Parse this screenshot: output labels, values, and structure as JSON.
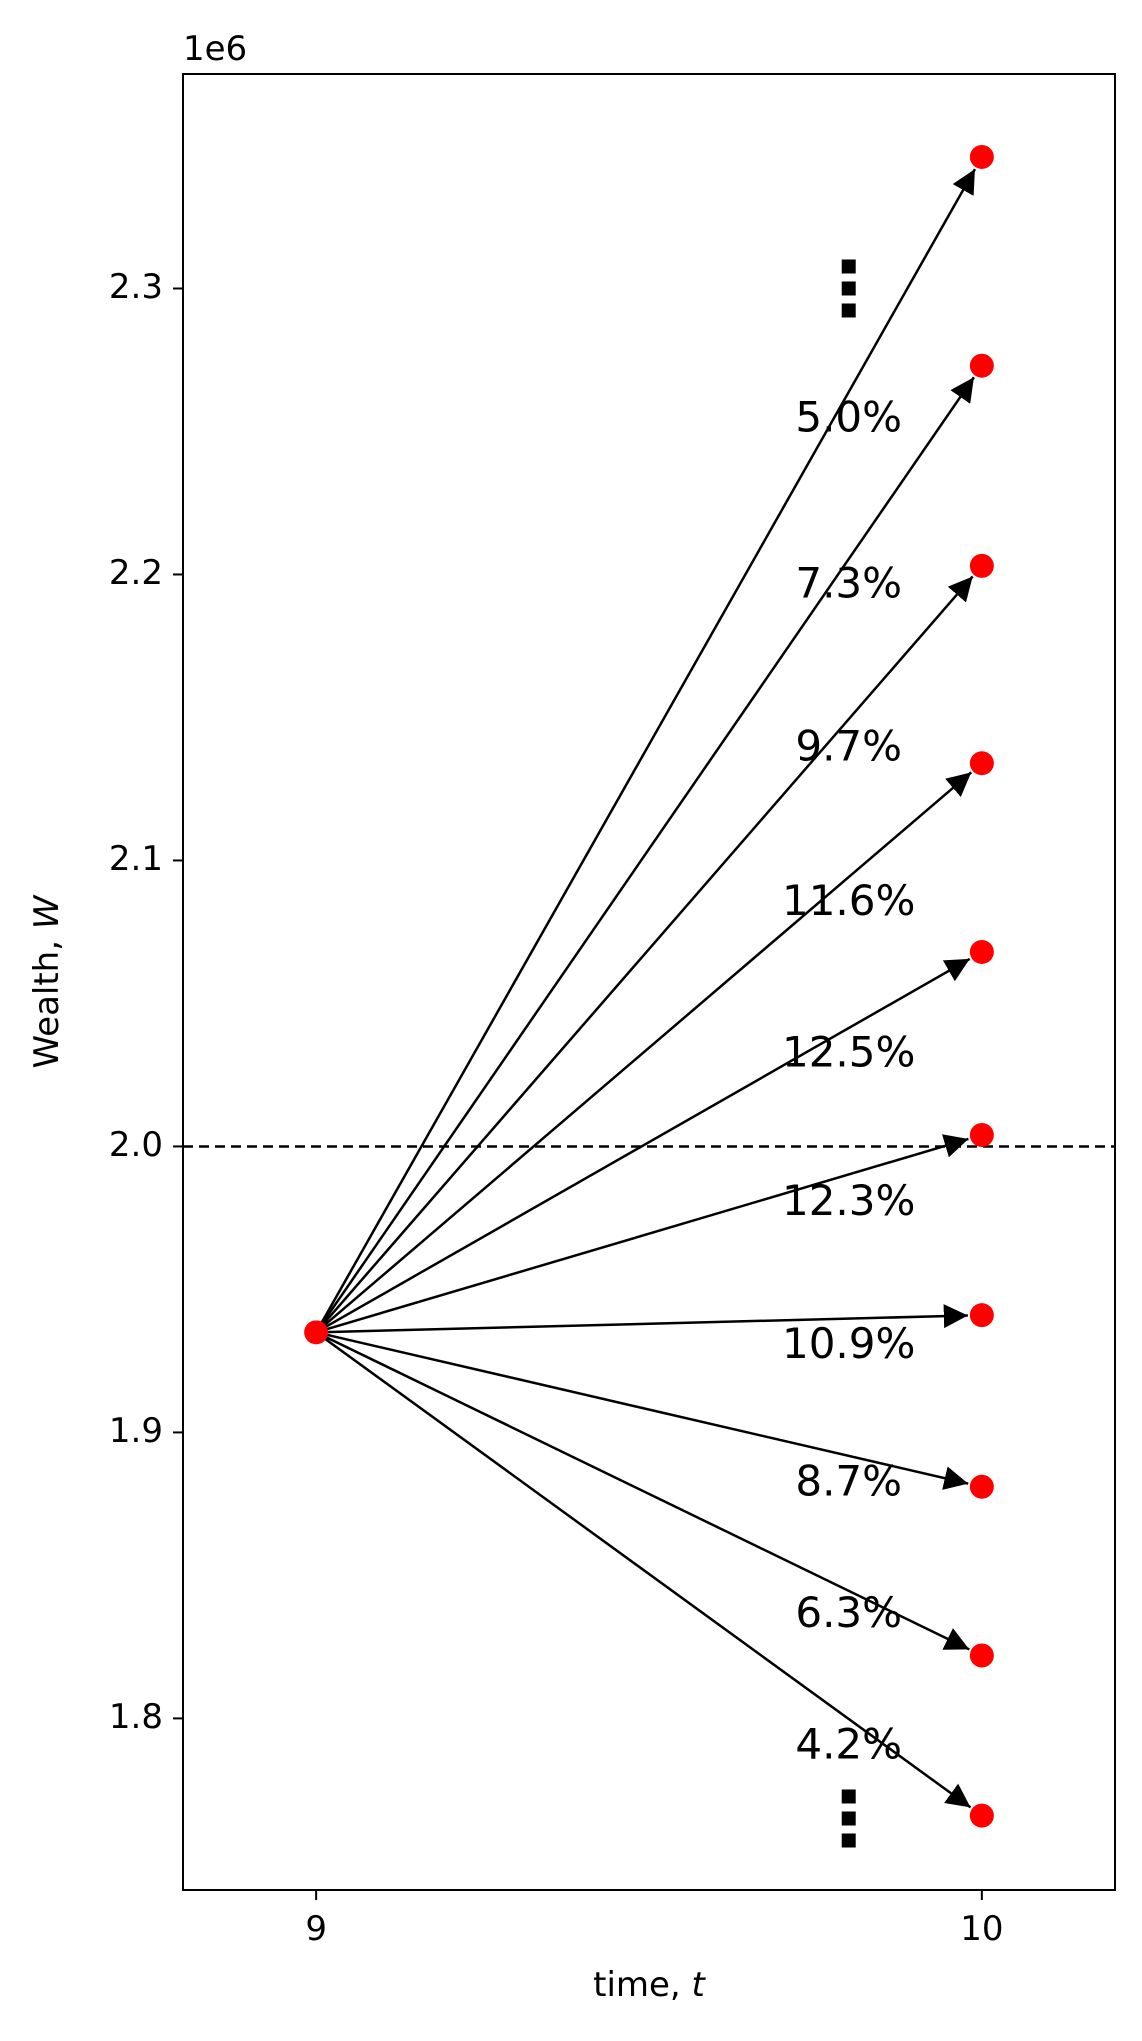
{
  "chart_data": {
    "type": "line",
    "xlabel_prefix": "time, ",
    "xlabel_var": "t",
    "ylabel_prefix": "Wealth, ",
    "ylabel_var": "W",
    "y_offset_text": "1e6",
    "xlim": [
      8.8,
      10.2
    ],
    "ylim": [
      1.74,
      2.375
    ],
    "xticks": [
      9,
      10
    ],
    "xtick_labels": [
      "9",
      "10"
    ],
    "yticks": [
      1.8,
      1.9,
      2.0,
      2.1,
      2.2,
      2.3
    ],
    "ytick_labels": [
      "1.8",
      "1.9",
      "2.0",
      "2.1",
      "2.2",
      "2.3"
    ],
    "reference_line": {
      "y": 2.0,
      "style": "dashed"
    },
    "start_point": {
      "x": 9,
      "y": 1.935
    },
    "end_points": [
      {
        "x": 10,
        "y": 2.346
      },
      {
        "x": 10,
        "y": 2.273
      },
      {
        "x": 10,
        "y": 2.203
      },
      {
        "x": 10,
        "y": 2.134
      },
      {
        "x": 10,
        "y": 2.068
      },
      {
        "x": 10,
        "y": 2.004
      },
      {
        "x": 10,
        "y": 1.941
      },
      {
        "x": 10,
        "y": 1.881
      },
      {
        "x": 10,
        "y": 1.822
      },
      {
        "x": 10,
        "y": 1.766
      }
    ],
    "annotations": [
      {
        "text": "5.0%",
        "x": 9.8,
        "y": 2.254
      },
      {
        "text": "7.3%",
        "x": 9.8,
        "y": 2.196
      },
      {
        "text": "9.7%",
        "x": 9.8,
        "y": 2.139
      },
      {
        "text": "11.6%",
        "x": 9.8,
        "y": 2.085
      },
      {
        "text": "12.5%",
        "x": 9.8,
        "y": 2.032
      },
      {
        "text": "12.3%",
        "x": 9.8,
        "y": 1.98
      },
      {
        "text": "10.9%",
        "x": 9.8,
        "y": 1.93
      },
      {
        "text": "8.7%",
        "x": 9.8,
        "y": 1.882
      },
      {
        "text": "6.3%",
        "x": 9.8,
        "y": 1.836
      },
      {
        "text": "4.2%",
        "x": 9.8,
        "y": 1.79
      }
    ],
    "ellipsis_markers": [
      {
        "x": 9.8,
        "y": 2.3
      },
      {
        "x": 9.8,
        "y": 1.765
      }
    ],
    "colors": {
      "point": "#ff0000",
      "arrow": "#000000",
      "axis": "#000000"
    }
  }
}
